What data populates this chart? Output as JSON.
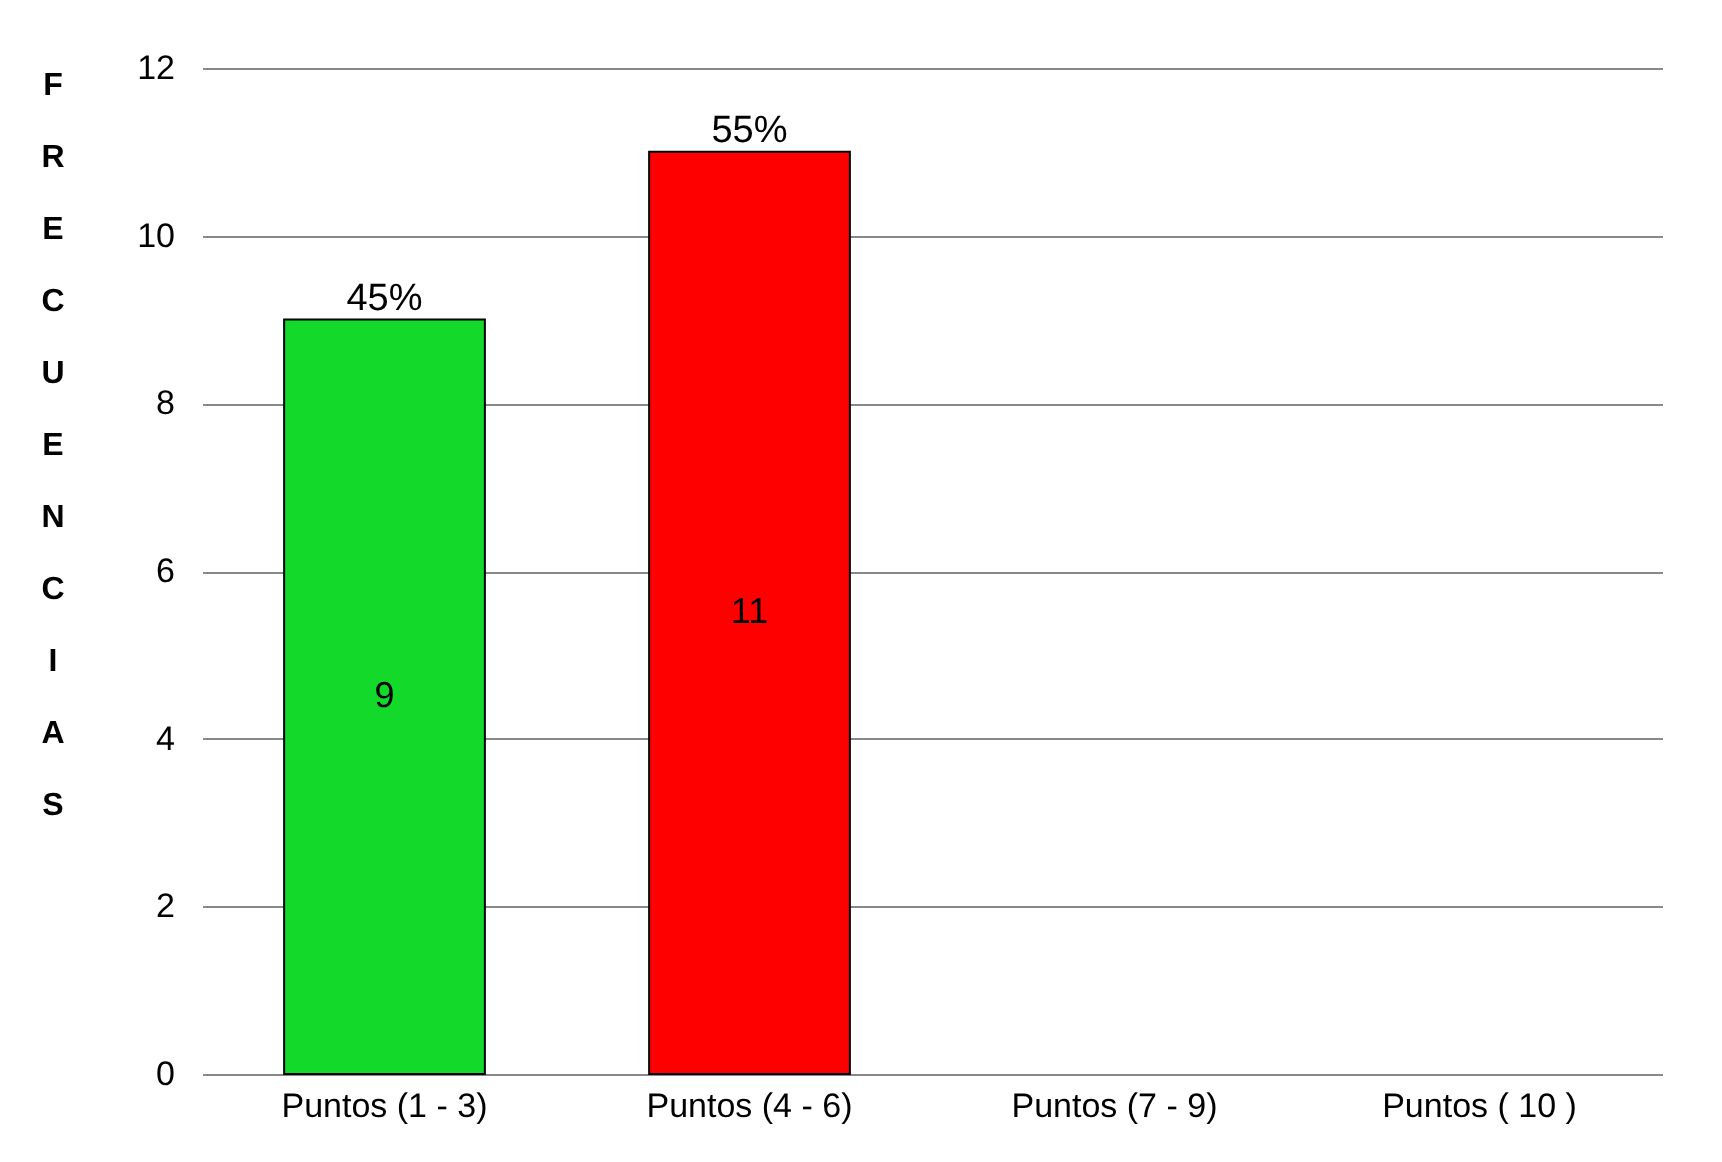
{
  "chart_data": {
    "type": "bar",
    "ylabel": "FRECUENCIAS",
    "categories": [
      "Puntos (1 - 3)",
      "Puntos (4 - 6)",
      "Puntos (7 - 9)",
      "Puntos  ( 10 )"
    ],
    "values": [
      9,
      11,
      null,
      null
    ],
    "colors": [
      "#12d92a",
      "#ff0000",
      null,
      null
    ],
    "value_labels": [
      "9",
      "11",
      null,
      null
    ],
    "annotations": [
      {
        "text": "45%",
        "x": "Puntos (1 - 3)",
        "y": 9
      },
      {
        "text": "55%",
        "x": "Puntos (4 - 6)",
        "y": 11
      }
    ],
    "ylim": [
      0,
      12
    ],
    "yticks": [
      0,
      2,
      4,
      6,
      8,
      10,
      12
    ],
    "grid": "y"
  }
}
